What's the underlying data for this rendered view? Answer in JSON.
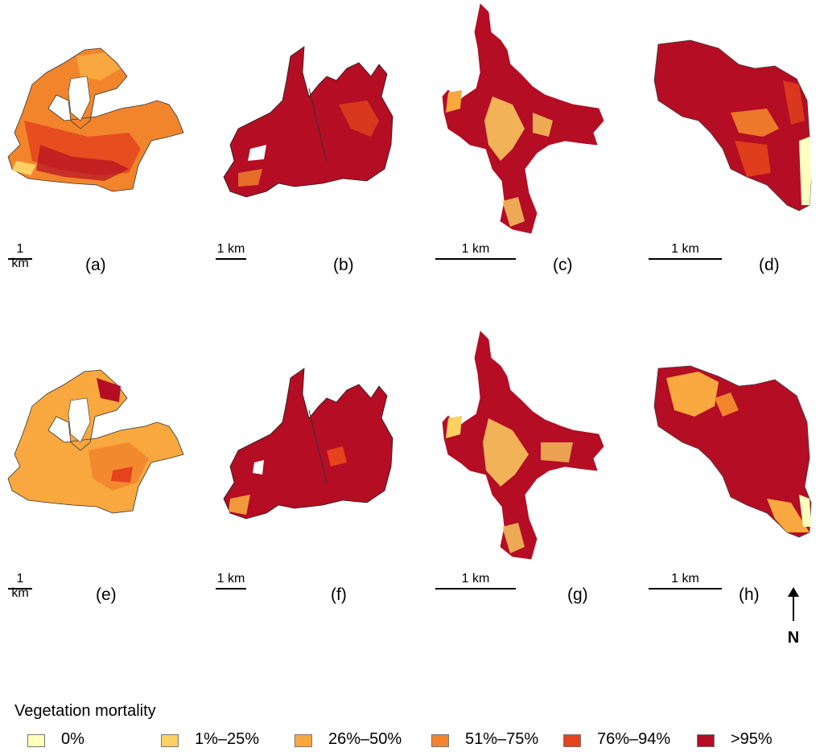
{
  "panels": [
    {
      "id": "a",
      "label": "(a)",
      "scale": "1 km"
    },
    {
      "id": "b",
      "label": "(b)",
      "scale": "1 km"
    },
    {
      "id": "c",
      "label": "(c)",
      "scale": "1 km"
    },
    {
      "id": "d",
      "label": "(d)",
      "scale": "1 km"
    },
    {
      "id": "e",
      "label": "(e)",
      "scale": "1 km"
    },
    {
      "id": "f",
      "label": "(f)",
      "scale": "1 km"
    },
    {
      "id": "g",
      "label": "(g)",
      "scale": "1 km"
    },
    {
      "id": "h",
      "label": "(h)",
      "scale": "1 km"
    }
  ],
  "north_arrow": {
    "label": "N"
  },
  "legend": {
    "title": "Vegetation mortality",
    "items": [
      {
        "label": "0%",
        "color": "#ffffbe"
      },
      {
        "label": "1%–25%",
        "color": "#fdd162"
      },
      {
        "label": "26%–50%",
        "color": "#f8a83e"
      },
      {
        "label": "51%–75%",
        "color": "#f2852c"
      },
      {
        "label": "76%–94%",
        "color": "#e4431d"
      },
      {
        "label": ">95%",
        "color": "#b40d24"
      }
    ]
  }
}
